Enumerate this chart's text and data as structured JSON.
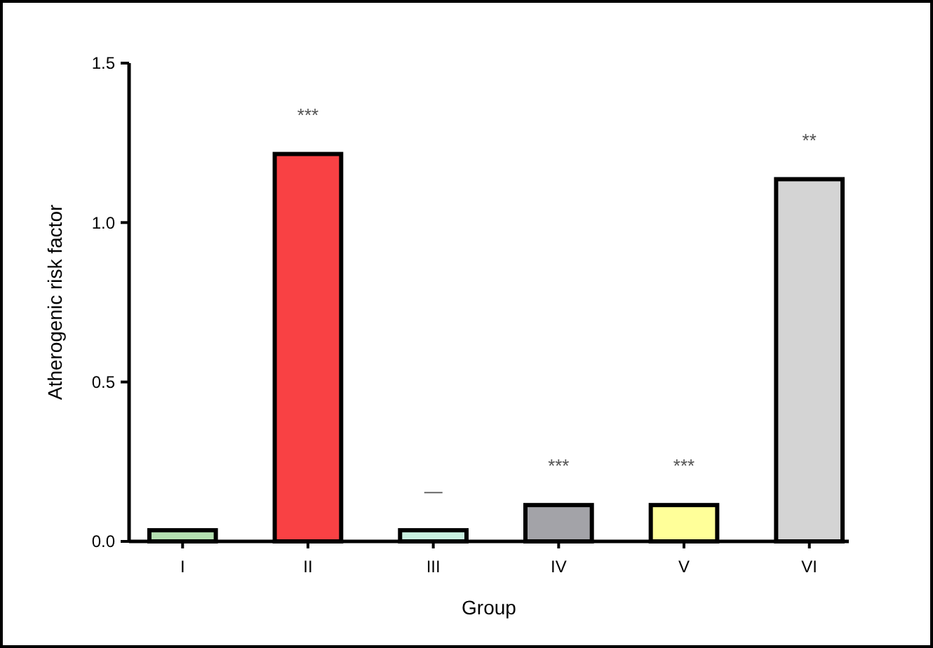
{
  "chart_data": {
    "type": "bar",
    "xlabel": "Group",
    "ylabel": "Atherogenic risk factor",
    "categories": [
      "I",
      "II",
      "III",
      "IV",
      "V",
      "VI"
    ],
    "values": [
      0.035,
      1.215,
      0.035,
      0.114,
      0.114,
      1.136
    ],
    "colors": [
      "#b3e0b0",
      "#f94144",
      "#c8f0e0",
      "#a3a3a8",
      "#ffff99",
      "#d4d4d4"
    ],
    "ylim": [
      0,
      1.5
    ],
    "yticks": [
      {
        "value": 0,
        "label": "0.0"
      },
      {
        "value": 0.5,
        "label": "0.5"
      },
      {
        "value": 1,
        "label": "1.0"
      },
      {
        "value": 1.5,
        "label": "1.5"
      }
    ],
    "grid": false,
    "annotations": [
      "***",
      "—",
      "***",
      "***",
      "**"
    ]
  }
}
